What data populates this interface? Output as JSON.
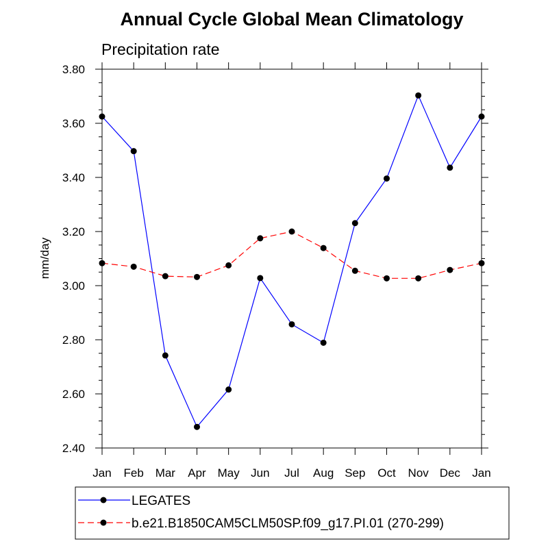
{
  "chart_data": {
    "type": "line",
    "title": "Annual Cycle Global Mean Climatology",
    "subtitle": "Precipitation rate",
    "xlabel": "",
    "ylabel": "mm/day",
    "categories": [
      "Jan",
      "Feb",
      "Mar",
      "Apr",
      "May",
      "Jun",
      "Jul",
      "Aug",
      "Sep",
      "Oct",
      "Nov",
      "Dec",
      "Jan"
    ],
    "ylim": [
      2.4,
      3.8
    ],
    "yticks": [
      "2.40",
      "2.60",
      "2.80",
      "3.00",
      "3.20",
      "3.40",
      "3.60",
      "3.80"
    ],
    "series": [
      {
        "name": "LEGATES",
        "color": "#0000ff",
        "dash": "solid",
        "values": [
          3.625,
          3.497,
          2.742,
          2.478,
          2.616,
          3.028,
          2.857,
          2.789,
          3.231,
          3.396,
          3.703,
          3.436,
          3.625
        ]
      },
      {
        "name": "b.e21.B1850CAM5CLM50SP.f09_g17.PI.01 (270-299)",
        "color": "#ff0000",
        "dash": "dashed",
        "values": [
          3.083,
          3.07,
          3.035,
          3.032,
          3.075,
          3.175,
          3.2,
          3.139,
          3.055,
          3.027,
          3.027,
          3.058,
          3.083
        ]
      }
    ]
  }
}
